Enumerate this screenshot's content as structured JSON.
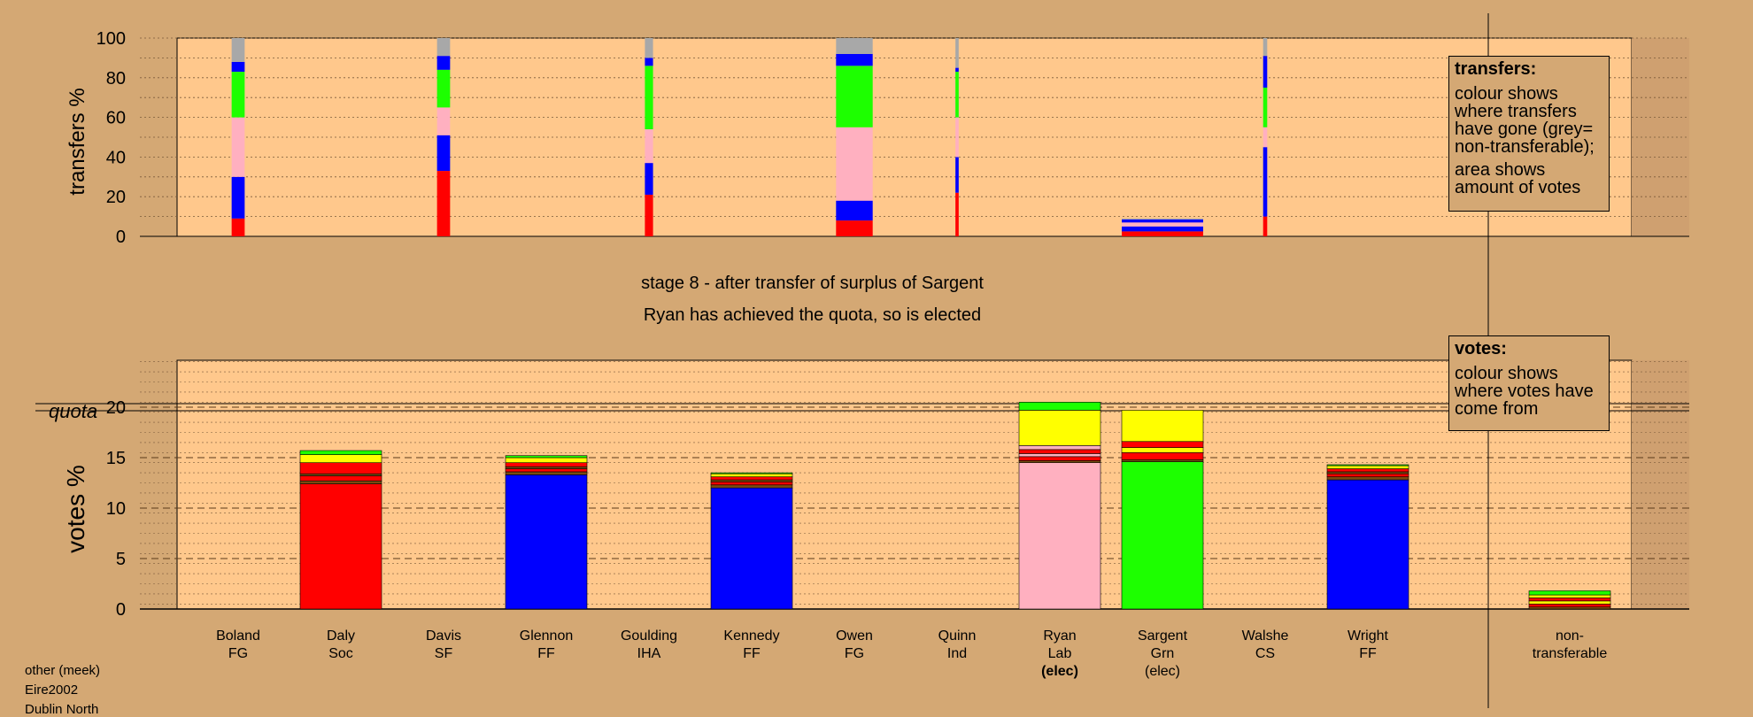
{
  "colors": {
    "background": "#d4a874",
    "plot_bg": "#ffc88c",
    "Soc": "#ff0000",
    "FF": "#0000ff",
    "Lab": "#ffb0c0",
    "Grn": "#1dff00",
    "Sargent_transfer": "#ffff00",
    "non_transferable": "#a8a8a8",
    "dark": "#7a4a10"
  },
  "stage_title": "stage 8 - after transfer of surplus of Sargent",
  "stage_subtitle": "Ryan has achieved the quota, so is elected",
  "legend_transfers": {
    "title": "transfers:",
    "line1": "colour shows where transfers have gone (grey= non-transferable);",
    "line2": "area shows amount of votes"
  },
  "legend_votes": {
    "title": "votes:",
    "line1": "colour shows where votes have come from"
  },
  "footer": [
    "other (meek)",
    "Eire2002",
    "Dublin North"
  ],
  "chart_data": [
    {
      "type": "bar",
      "name": "transfers",
      "ylabel": "transfers %",
      "ylim": [
        0,
        100
      ],
      "yticks": [
        0,
        20,
        40,
        60,
        80,
        100
      ],
      "grid": true,
      "series_order": [
        "Soc",
        "FF",
        "Lab",
        "Grn",
        "FF",
        "non_transferable"
      ],
      "bars": [
        {
          "candidate": "Boland",
          "width_rel": 0.16,
          "segments": [
            [
              "Soc",
              9
            ],
            [
              "FF",
              21
            ],
            [
              "Lab",
              30
            ],
            [
              "Grn",
              23
            ],
            [
              "FF",
              5
            ],
            [
              "non_transferable",
              12
            ]
          ]
        },
        {
          "candidate": "Davis",
          "width_rel": 0.16,
          "segments": [
            [
              "Soc",
              33
            ],
            [
              "FF",
              18
            ],
            [
              "Lab",
              14
            ],
            [
              "Grn",
              19
            ],
            [
              "FF",
              7
            ],
            [
              "non_transferable",
              9
            ]
          ]
        },
        {
          "candidate": "Goulding",
          "width_rel": 0.1,
          "segments": [
            [
              "Soc",
              21
            ],
            [
              "FF",
              16
            ],
            [
              "Lab",
              17
            ],
            [
              "Grn",
              32
            ],
            [
              "FF",
              4
            ],
            [
              "non_transferable",
              10
            ]
          ]
        },
        {
          "candidate": "Owen",
          "width_rel": 0.45,
          "segments": [
            [
              "Soc",
              8
            ],
            [
              "FF",
              10
            ],
            [
              "Lab",
              37
            ],
            [
              "Grn",
              31
            ],
            [
              "FF",
              6
            ],
            [
              "non_transferable",
              8
            ]
          ]
        },
        {
          "candidate": "Quinn",
          "width_rel": 0.04,
          "segments": [
            [
              "Soc",
              22
            ],
            [
              "FF",
              18
            ],
            [
              "Lab",
              20
            ],
            [
              "Grn",
              23
            ],
            [
              "FF",
              2
            ],
            [
              "non_transferable",
              15
            ]
          ]
        },
        {
          "candidate": "Sargent",
          "width_rel": 1.0,
          "segments": [
            [
              "Soc",
              2.5
            ],
            [
              "FF",
              2.5
            ],
            [
              "Lab",
              2
            ],
            [
              "FF",
              1.5
            ],
            [
              "non_transferable",
              0.5
            ]
          ]
        },
        {
          "candidate": "Walshe",
          "width_rel": 0.05,
          "segments": [
            [
              "Soc",
              10
            ],
            [
              "FF",
              35
            ],
            [
              "Lab",
              10
            ],
            [
              "Grn",
              20
            ],
            [
              "FF",
              16
            ],
            [
              "non_transferable",
              9
            ]
          ]
        }
      ]
    },
    {
      "type": "bar",
      "name": "votes",
      "ylabel": "votes %",
      "ylim": [
        0,
        25
      ],
      "yticks": [
        0,
        5,
        10,
        15,
        20
      ],
      "quota": 20,
      "quota_label": "quota",
      "grid": true,
      "candidates": [
        {
          "name": "Boland",
          "party": "FG",
          "status": "",
          "segments": []
        },
        {
          "name": "Daly",
          "party": "Soc",
          "status": "",
          "segments": [
            [
              "Soc",
              12.4
            ],
            [
              "dark",
              0.3
            ],
            [
              "Soc",
              0.5
            ],
            [
              "dark",
              0.2
            ],
            [
              "Soc",
              1.1
            ],
            [
              "Sargent_transfer",
              0.8
            ],
            [
              "Grn",
              0.4
            ]
          ]
        },
        {
          "name": "Davis",
          "party": "SF",
          "status": "",
          "segments": []
        },
        {
          "name": "Glennon",
          "party": "FF",
          "status": "",
          "segments": [
            [
              "FF",
              13.3
            ],
            [
              "dark",
              0.3
            ],
            [
              "Soc",
              0.3
            ],
            [
              "dark",
              0.2
            ],
            [
              "Soc",
              0.4
            ],
            [
              "Sargent_transfer",
              0.5
            ],
            [
              "Grn",
              0.2
            ]
          ]
        },
        {
          "name": "Goulding",
          "party": "IHA",
          "status": "",
          "segments": []
        },
        {
          "name": "Kennedy",
          "party": "FF",
          "status": "",
          "segments": [
            [
              "FF",
              12.0
            ],
            [
              "dark",
              0.3
            ],
            [
              "Soc",
              0.3
            ],
            [
              "dark",
              0.2
            ],
            [
              "Soc",
              0.3
            ],
            [
              "Sargent_transfer",
              0.3
            ],
            [
              "Grn",
              0.1
            ]
          ]
        },
        {
          "name": "Owen",
          "party": "FG",
          "status": "",
          "segments": []
        },
        {
          "name": "Quinn",
          "party": "Ind",
          "status": "",
          "segments": []
        },
        {
          "name": "Ryan",
          "party": "Lab",
          "status": "(elec)",
          "segments": [
            [
              "Lab",
              14.5
            ],
            [
              "dark",
              0.2
            ],
            [
              "Soc",
              0.4
            ],
            [
              "Lab",
              0.3
            ],
            [
              "Soc",
              0.4
            ],
            [
              "Lab",
              0.4
            ],
            [
              "Sargent_transfer",
              3.5
            ],
            [
              "Grn",
              0.8
            ]
          ]
        },
        {
          "name": "Sargent",
          "party": "Grn",
          "status": "(elec)",
          "segments": [
            [
              "Grn",
              14.6
            ],
            [
              "dark",
              0.2
            ],
            [
              "Soc",
              0.7
            ],
            [
              "Sargent_transfer",
              0.5
            ],
            [
              "Soc",
              0.6
            ],
            [
              "Sargent_transfer",
              3.1
            ]
          ]
        },
        {
          "name": "Walshe",
          "party": "CS",
          "status": "",
          "segments": []
        },
        {
          "name": "Wright",
          "party": "FF",
          "status": "",
          "segments": [
            [
              "FF",
              12.8
            ],
            [
              "dark",
              0.3
            ],
            [
              "Soc",
              0.3
            ],
            [
              "dark",
              0.2
            ],
            [
              "Soc",
              0.3
            ],
            [
              "Sargent_transfer",
              0.3
            ],
            [
              "Grn",
              0.1
            ]
          ]
        }
      ],
      "non_transferable": {
        "label": "non-",
        "label2": "transferable",
        "segments": [
          [
            "dark",
            0.2
          ],
          [
            "Soc",
            0.3
          ],
          [
            "Sargent_transfer",
            0.3
          ],
          [
            "Soc",
            0.3
          ],
          [
            "Sargent_transfer",
            0.3
          ],
          [
            "Grn",
            0.4
          ]
        ]
      }
    }
  ]
}
